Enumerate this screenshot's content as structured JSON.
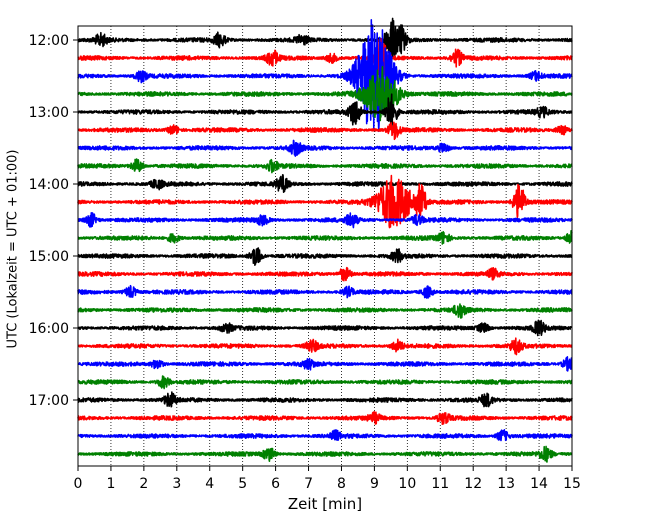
{
  "chart_data": {
    "type": "line",
    "subtype": "helicorder",
    "xlabel": "Zeit  [min]",
    "ylabel": "UTC (Lokalzeit = UTC + 01:00)",
    "xlim": [
      0,
      15
    ],
    "x_ticks": [
      0,
      1,
      2,
      3,
      4,
      5,
      6,
      7,
      8,
      9,
      10,
      11,
      12,
      13,
      14,
      15
    ],
    "x_tick_labels": [
      "0",
      "1",
      "2",
      "3",
      "4",
      "5",
      "6",
      "7",
      "8",
      "9",
      "10",
      "11",
      "12",
      "13",
      "14",
      "15"
    ],
    "y_tick_labels": [
      "12:00",
      "13:00",
      "14:00",
      "15:00",
      "16:00",
      "17:00"
    ],
    "grid": "vertical dotted at each minute",
    "trace_interval_minutes": 15,
    "trace_colors": [
      "#000000",
      "#ff0000",
      "#0000ff",
      "#008000"
    ],
    "traces": [
      {
        "start": "12:00",
        "events": [
          {
            "t": 0.7,
            "amp": 0.25
          },
          {
            "t": 4.3,
            "amp": 0.3
          },
          {
            "t": 6.8,
            "amp": 0.2
          },
          {
            "t": 9.5,
            "amp": 0.9
          },
          {
            "t": 9.8,
            "amp": 0.6
          }
        ]
      },
      {
        "start": "12:15",
        "events": [
          {
            "t": 5.9,
            "amp": 0.35
          },
          {
            "t": 7.7,
            "amp": 0.2
          },
          {
            "t": 9.2,
            "amp": 1.0
          },
          {
            "t": 11.5,
            "amp": 0.35
          }
        ]
      },
      {
        "start": "12:30",
        "events": [
          {
            "t": 1.9,
            "amp": 0.25
          },
          {
            "t": 9.0,
            "amp": 2.6
          },
          {
            "t": 13.9,
            "amp": 0.2
          }
        ]
      },
      {
        "start": "12:45",
        "events": [
          {
            "t": 9.2,
            "amp": 1.2
          }
        ]
      },
      {
        "start": "13:00",
        "events": [
          {
            "t": 8.4,
            "amp": 0.6
          },
          {
            "t": 9.5,
            "amp": 0.8
          },
          {
            "t": 14.1,
            "amp": 0.2
          }
        ]
      },
      {
        "start": "13:15",
        "events": [
          {
            "t": 2.9,
            "amp": 0.2
          },
          {
            "t": 9.6,
            "amp": 0.4
          },
          {
            "t": 14.7,
            "amp": 0.2
          }
        ]
      },
      {
        "start": "13:30",
        "events": [
          {
            "t": 6.6,
            "amp": 0.3
          },
          {
            "t": 11.1,
            "amp": 0.2
          }
        ]
      },
      {
        "start": "13:45",
        "events": [
          {
            "t": 1.8,
            "amp": 0.3
          },
          {
            "t": 5.9,
            "amp": 0.25
          }
        ]
      },
      {
        "start": "14:00",
        "events": [
          {
            "t": 2.4,
            "amp": 0.2
          },
          {
            "t": 6.2,
            "amp": 0.35
          }
        ]
      },
      {
        "start": "14:15",
        "events": [
          {
            "t": 9.6,
            "amp": 1.2
          },
          {
            "t": 10.4,
            "amp": 0.7
          },
          {
            "t": 13.4,
            "amp": 0.8
          }
        ]
      },
      {
        "start": "14:30",
        "events": [
          {
            "t": 0.4,
            "amp": 0.3
          },
          {
            "t": 5.6,
            "amp": 0.2
          },
          {
            "t": 8.3,
            "amp": 0.3
          },
          {
            "t": 10.3,
            "amp": 0.2
          }
        ]
      },
      {
        "start": "14:45",
        "events": [
          {
            "t": 2.9,
            "amp": 0.2
          },
          {
            "t": 11.1,
            "amp": 0.25
          },
          {
            "t": 15.0,
            "amp": 0.3
          }
        ]
      },
      {
        "start": "15:00",
        "events": [
          {
            "t": 5.4,
            "amp": 0.4
          },
          {
            "t": 9.7,
            "amp": 0.25
          }
        ]
      },
      {
        "start": "15:15",
        "events": [
          {
            "t": 8.1,
            "amp": 0.3
          },
          {
            "t": 12.6,
            "amp": 0.2
          }
        ]
      },
      {
        "start": "15:30",
        "events": [
          {
            "t": 1.6,
            "amp": 0.25
          },
          {
            "t": 8.2,
            "amp": 0.2
          },
          {
            "t": 10.6,
            "amp": 0.25
          }
        ]
      },
      {
        "start": "15:45",
        "events": [
          {
            "t": 11.6,
            "amp": 0.3
          }
        ]
      },
      {
        "start": "16:00",
        "events": [
          {
            "t": 4.5,
            "amp": 0.2
          },
          {
            "t": 12.3,
            "amp": 0.2
          },
          {
            "t": 14.0,
            "amp": 0.3
          }
        ]
      },
      {
        "start": "16:15",
        "events": [
          {
            "t": 7.1,
            "amp": 0.25
          },
          {
            "t": 9.7,
            "amp": 0.25
          },
          {
            "t": 13.3,
            "amp": 0.3
          }
        ]
      },
      {
        "start": "16:30",
        "events": [
          {
            "t": 2.4,
            "amp": 0.2
          },
          {
            "t": 7.0,
            "amp": 0.2
          },
          {
            "t": 14.9,
            "amp": 0.3
          }
        ]
      },
      {
        "start": "16:45",
        "events": [
          {
            "t": 2.6,
            "amp": 0.25
          }
        ]
      },
      {
        "start": "17:00",
        "events": [
          {
            "t": 2.8,
            "amp": 0.3
          },
          {
            "t": 12.4,
            "amp": 0.25
          }
        ]
      },
      {
        "start": "17:15",
        "events": [
          {
            "t": 9.0,
            "amp": 0.2
          },
          {
            "t": 11.1,
            "amp": 0.25
          }
        ]
      },
      {
        "start": "17:30",
        "events": [
          {
            "t": 7.8,
            "amp": 0.2
          },
          {
            "t": 12.9,
            "amp": 0.25
          }
        ]
      },
      {
        "start": "17:45",
        "events": [
          {
            "t": 5.8,
            "amp": 0.3
          },
          {
            "t": 14.2,
            "amp": 0.3
          }
        ]
      }
    ]
  }
}
